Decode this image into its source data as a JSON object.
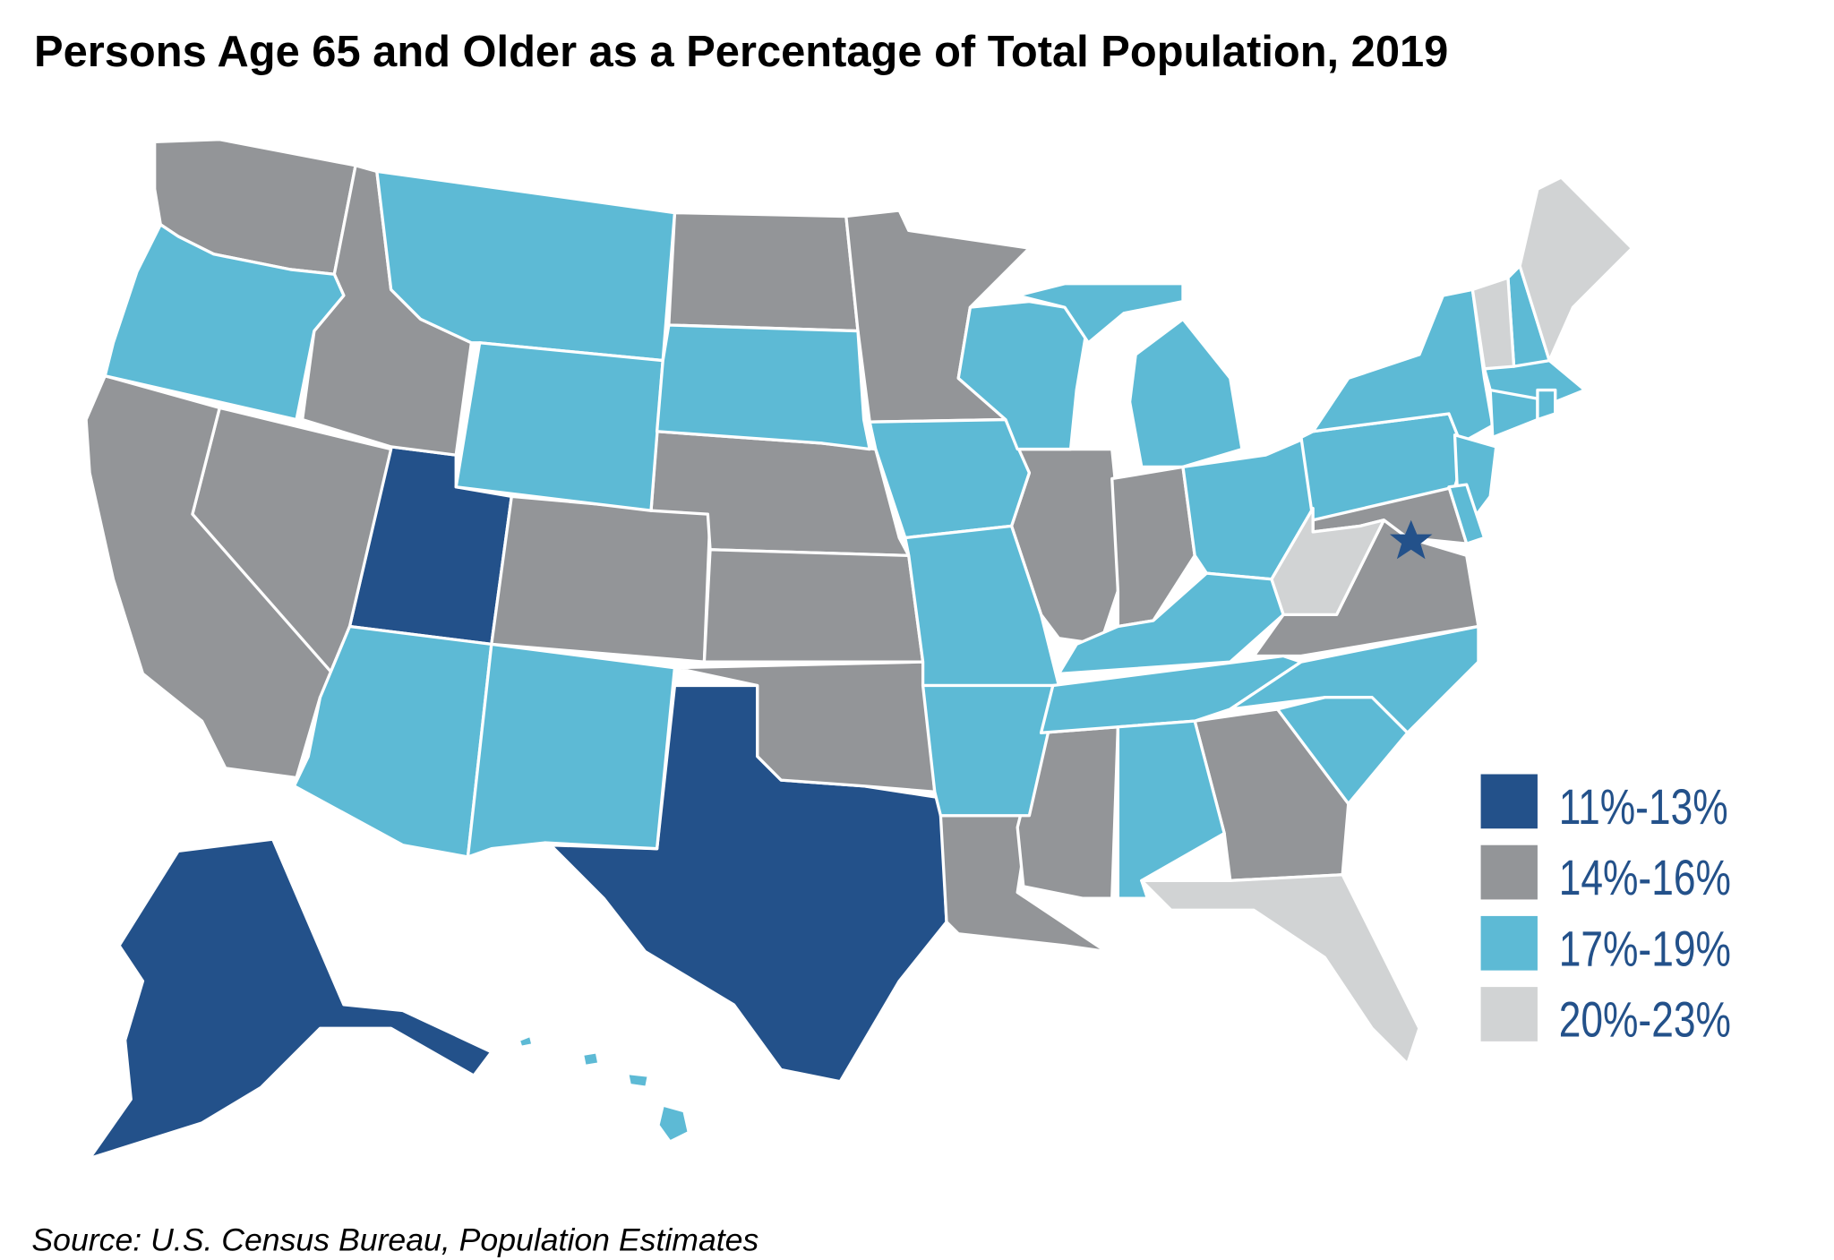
{
  "title": "Persons Age 65 and Older as a Percentage of Total Population, 2019",
  "source": "Source: U.S. Census Bureau, Population Estimates",
  "legend": [
    {
      "label": "11%-13%",
      "color": "#23518a"
    },
    {
      "label": "14%-16%",
      "color": "#939598"
    },
    {
      "label": "17%-19%",
      "color": "#5dbad5"
    },
    {
      "label": "20%-23%",
      "color": "#d1d3d4"
    }
  ],
  "marker": {
    "icon": "star-icon",
    "label": "DC",
    "range_index": 0,
    "color": "#23518a"
  },
  "chart_data": {
    "type": "choropleth",
    "title": "Persons Age 65 and Older as a Percentage of Total Population, 2019",
    "ranges": [
      "11%-13%",
      "14%-16%",
      "17%-19%",
      "20%-23%"
    ],
    "states": {
      "UT": 0,
      "TX": 0,
      "AK": 0,
      "WA": 1,
      "ID": 1,
      "NV": 1,
      "CA": 1,
      "CO": 1,
      "ND": 1,
      "MN": 1,
      "NE": 1,
      "KS": 1,
      "OK": 1,
      "IL": 1,
      "IN": 1,
      "LA": 1,
      "MS": 1,
      "GA": 1,
      "VA": 1,
      "MD": 1,
      "OR": 2,
      "MT": 2,
      "WY": 2,
      "SD": 2,
      "AZ": 2,
      "NM": 2,
      "IA": 2,
      "MO": 2,
      "AR": 2,
      "WI": 2,
      "MI": 2,
      "OH": 2,
      "KY": 2,
      "TN": 2,
      "AL": 2,
      "NC": 2,
      "SC": 2,
      "PA": 2,
      "NY": 2,
      "NJ": 2,
      "CT": 2,
      "MA": 2,
      "RI": 2,
      "NH": 2,
      "DE": 2,
      "HI": 2,
      "ME": 3,
      "VT": 3,
      "WV": 3,
      "FL": 3
    }
  }
}
